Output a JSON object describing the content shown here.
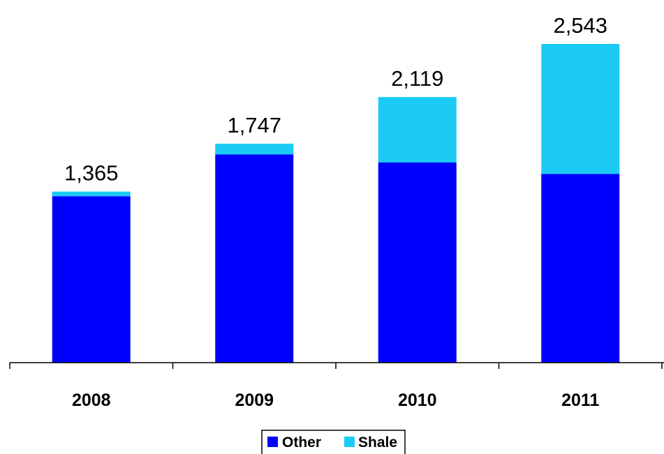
{
  "chart_data": {
    "type": "bar",
    "stacked": true,
    "categories": [
      "2008",
      "2009",
      "2010",
      "2011"
    ],
    "series": [
      {
        "name": "Other",
        "color": "#0000ff",
        "values": [
          1328,
          1661,
          1597,
          1506
        ]
      },
      {
        "name": "Shale",
        "color": "#1ccbf5",
        "values": [
          37,
          86,
          522,
          1037
        ]
      }
    ],
    "totals": [
      "1,365",
      "1,747",
      "2,119",
      "2,543"
    ],
    "ylim": [
      0,
      2543
    ],
    "y_axis_visible": false,
    "grid": false,
    "legend": {
      "position": "bottom-center",
      "items": [
        "Other",
        "Shale"
      ]
    }
  }
}
